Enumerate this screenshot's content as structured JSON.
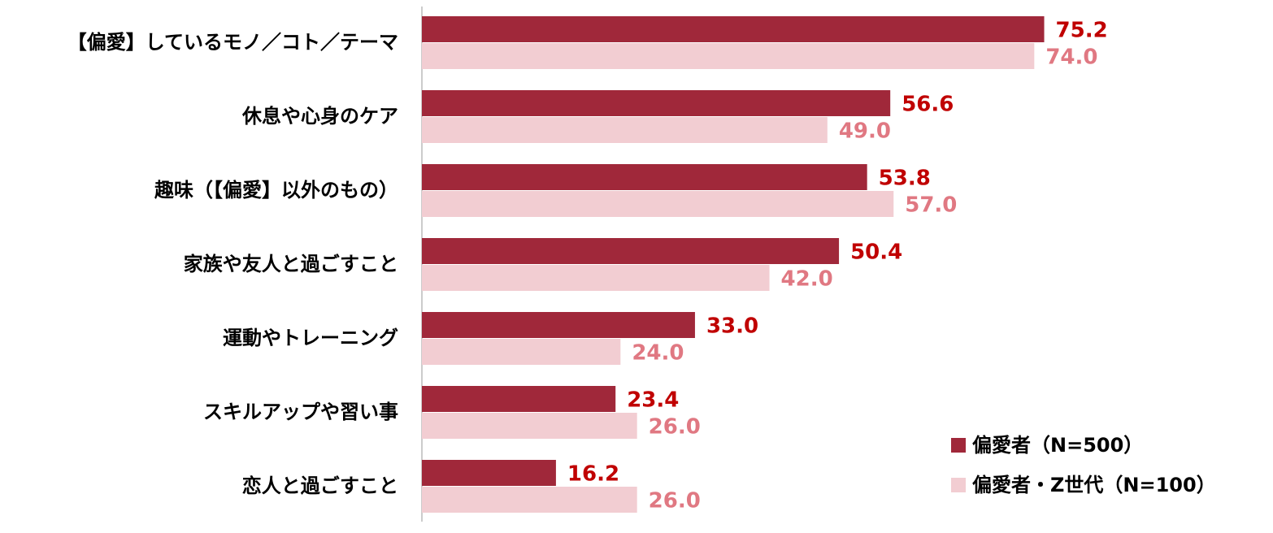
{
  "chart_data": {
    "type": "hbar",
    "categories": [
      "【偏愛】しているモノ／コト／テーマ",
      "休息や心身のケア",
      "趣味（【偏愛】以外のもの）",
      "家族や友人と過ごすこと",
      "運動やトレーニング",
      "スキルアップや習い事",
      "恋人と過ごすこと"
    ],
    "series": [
      {
        "name": "偏愛者（N=500）",
        "color": "#a0283a",
        "label_color": "#c00000",
        "values": [
          75.2,
          56.6,
          53.8,
          50.4,
          33.0,
          23.4,
          16.2
        ],
        "value_labels": [
          "75.2",
          "56.6",
          "53.8",
          "50.4",
          "33.0",
          "23.4",
          "16.2"
        ]
      },
      {
        "name": "偏愛者・Z世代（N=100）",
        "color": "#f2cdd2",
        "label_color": "#e07882",
        "values": [
          74.0,
          49.0,
          57.0,
          42.0,
          24.0,
          26.0,
          26.0
        ],
        "value_labels": [
          "74.0",
          "49.0",
          "57.0",
          "42.0",
          "24.0",
          "26.0",
          "26.0"
        ]
      }
    ],
    "legend": "bottom-right"
  }
}
